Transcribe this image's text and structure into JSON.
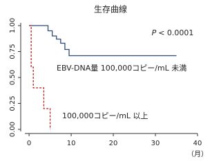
{
  "chart_data": {
    "type": "line",
    "title": "生存曲線",
    "xlim": [
      -1,
      40
    ],
    "ylim": [
      0,
      1
    ],
    "xticks": [
      0,
      10,
      20,
      30,
      40
    ],
    "yticks": [
      {
        "value": 0,
        "label": "0.00"
      },
      {
        "value": 0.25,
        "label": "0.25"
      },
      {
        "value": 0.5,
        "label": "0.50"
      },
      {
        "value": 0.75,
        "label": "0.75"
      },
      {
        "value": 1,
        "label": "1.00"
      }
    ],
    "x_label": "（月）",
    "annotations": {
      "p_symbol": "P",
      "p_value": "< 0.0001"
    },
    "series": [
      {
        "name": "EBV-DNA量  100,000コピー/mL 未満",
        "color": "#2e4a7a",
        "dash": false,
        "x": [
          0,
          4.5,
          4.5,
          5.5,
          5.5,
          6.5,
          6.5,
          7.5,
          7.5,
          8.5,
          8.5,
          9.5,
          9.5,
          35
        ],
        "values": [
          1,
          1,
          0.95,
          0.95,
          0.9,
          0.9,
          0.87,
          0.87,
          0.83,
          0.83,
          0.77,
          0.77,
          0.71,
          0.71
        ]
      },
      {
        "name": "100,000コピー/mL 以上",
        "color": "#b22222",
        "dash": true,
        "x": [
          0,
          0.5,
          0.5,
          1,
          1,
          3.5,
          3.5,
          5,
          5
        ],
        "values": [
          1,
          1,
          0.6,
          0.6,
          0.4,
          0.4,
          0.2,
          0.2,
          0
        ]
      }
    ]
  }
}
